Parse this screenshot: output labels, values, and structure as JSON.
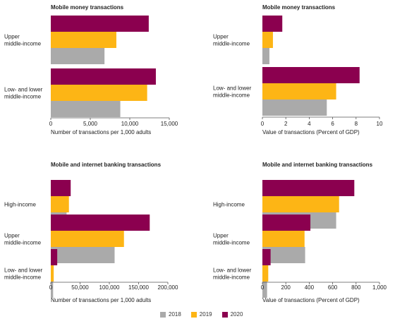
{
  "colors": {
    "2018": "#aaaaaa",
    "2019": "#fdb515",
    "2020": "#8b004f",
    "axis": "#555555",
    "text": "#222222"
  },
  "legend": {
    "items": [
      {
        "label": "2018",
        "color": "#aaaaaa"
      },
      {
        "label": "2019",
        "color": "#fdb515"
      },
      {
        "label": "2020",
        "color": "#8b004f"
      }
    ]
  },
  "chart_data": [
    {
      "type": "bar",
      "orientation": "horizontal",
      "title": "Mobile money transactions",
      "xlabel": "Number of transactions per 1,000 adults",
      "xlim": [
        0,
        15000
      ],
      "xticks": [
        "0",
        "5,000",
        "10,000",
        "15,000"
      ],
      "xtick_values": [
        0,
        5000,
        10000,
        15000
      ],
      "categories": [
        "Upper\nmiddle-income",
        "Low- and lower\nmiddle-income"
      ],
      "series": [
        {
          "name": "2020",
          "values": [
            12400,
            13300
          ]
        },
        {
          "name": "2019",
          "values": [
            8300,
            12200
          ]
        },
        {
          "name": "2018",
          "values": [
            6800,
            8800
          ]
        }
      ]
    },
    {
      "type": "bar",
      "orientation": "horizontal",
      "title": "Mobile money transactions",
      "xlabel": "Value of transactions (Percent of GDP)",
      "xlim": [
        0,
        10
      ],
      "xticks": [
        "0",
        "2",
        "4",
        "6",
        "8",
        "10"
      ],
      "xtick_values": [
        0,
        2,
        4,
        6,
        8,
        10
      ],
      "categories": [
        "Upper\nmiddle-income",
        "Low- and lower\nmiddle-income"
      ],
      "series": [
        {
          "name": "2020",
          "values": [
            1.7,
            8.3
          ]
        },
        {
          "name": "2019",
          "values": [
            0.9,
            6.3
          ]
        },
        {
          "name": "2018",
          "values": [
            0.6,
            5.5
          ]
        }
      ]
    },
    {
      "type": "bar",
      "orientation": "horizontal",
      "title": "Mobile and internet banking transactions",
      "xlabel": "Number of transactions per 1,000 adults",
      "xlim": [
        0,
        200000
      ],
      "xticks": [
        "0",
        "50,000",
        "100,000",
        "150,000",
        "200,000"
      ],
      "xtick_values": [
        0,
        50000,
        100000,
        150000,
        200000
      ],
      "categories": [
        "High-income",
        "Upper\nmiddle-income",
        "Low- and lower\nmiddle-income"
      ],
      "series": [
        {
          "name": "2020",
          "values": [
            34000,
            169000,
            11000
          ]
        },
        {
          "name": "2019",
          "values": [
            31000,
            125000,
            5000
          ]
        },
        {
          "name": "2018",
          "values": [
            27000,
            109000,
            4000
          ]
        }
      ]
    },
    {
      "type": "bar",
      "orientation": "horizontal",
      "title": "Mobile and internet banking transactions",
      "xlabel": "Value of transactions (Percent of GDP)",
      "xlim": [
        0,
        1000
      ],
      "xticks": [
        "0",
        "200",
        "400",
        "600",
        "800",
        "1,000"
      ],
      "xtick_values": [
        0,
        200,
        400,
        600,
        800,
        1000
      ],
      "categories": [
        "High-income",
        "Upper\nmiddle-income",
        "Low- and lower\nmiddle-income"
      ],
      "series": [
        {
          "name": "2020",
          "values": [
            785,
            410,
            70
          ]
        },
        {
          "name": "2019",
          "values": [
            655,
            360,
            50
          ]
        },
        {
          "name": "2018",
          "values": [
            630,
            365,
            40
          ]
        }
      ]
    }
  ]
}
